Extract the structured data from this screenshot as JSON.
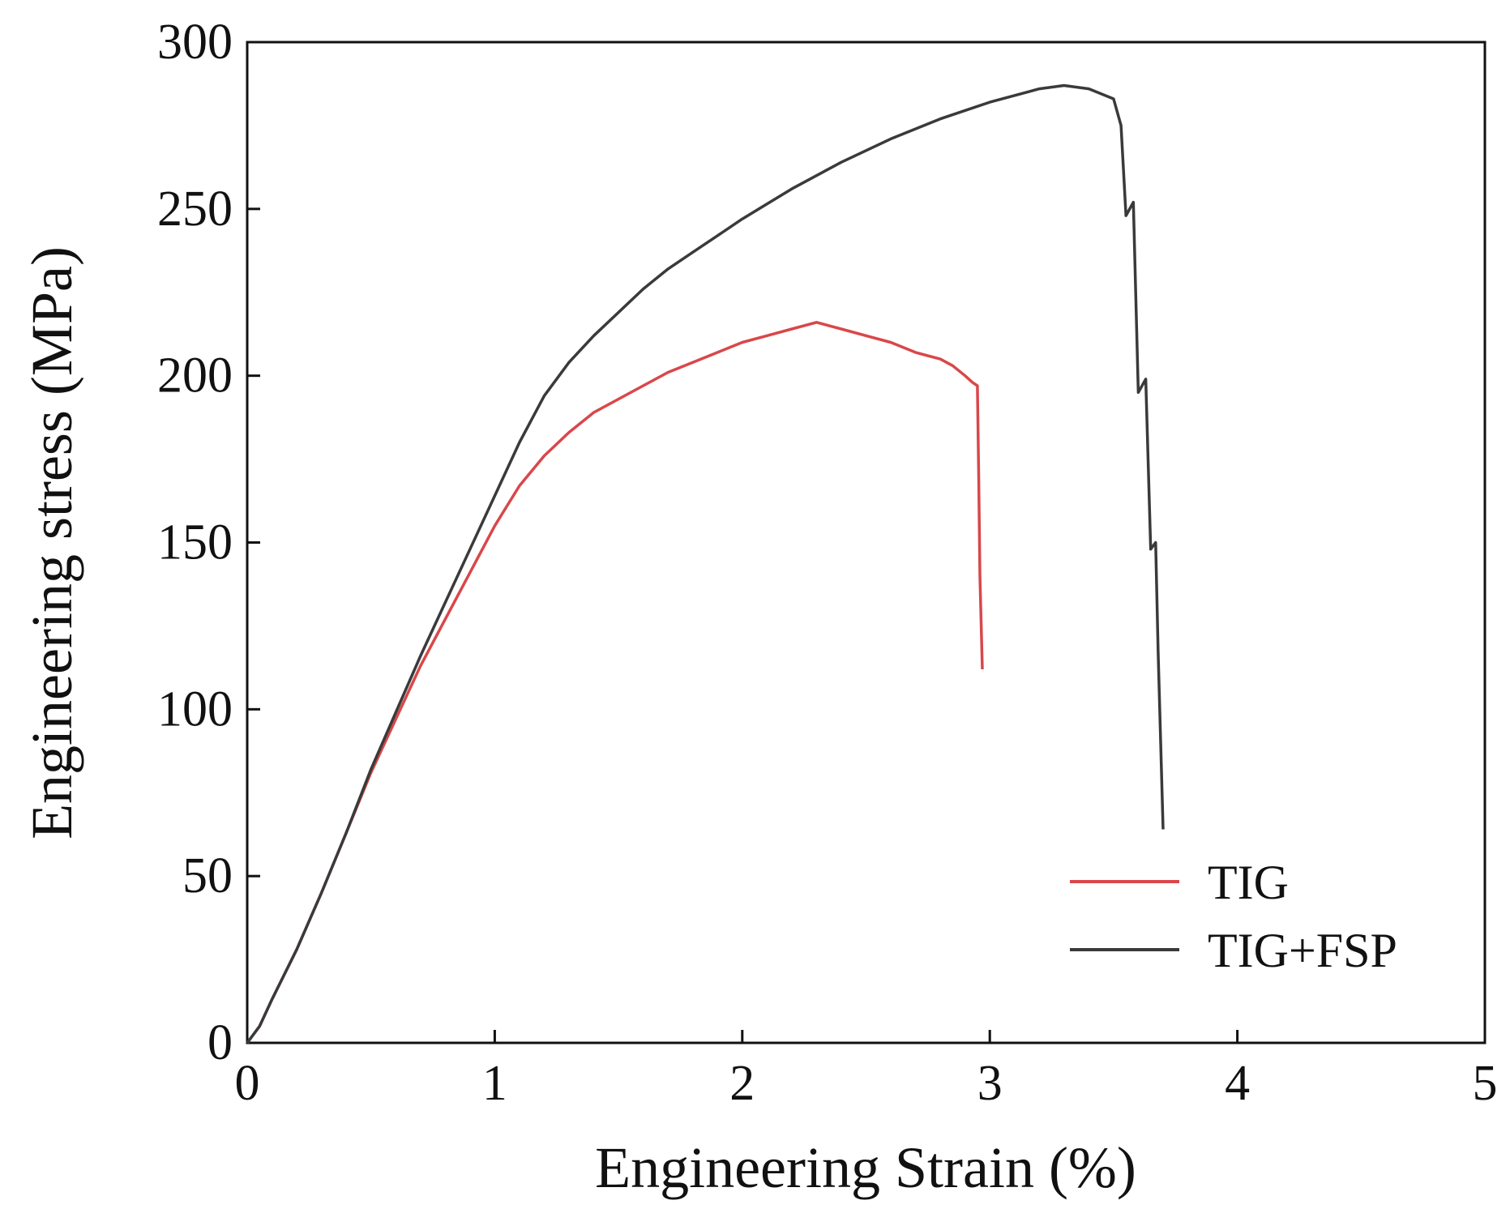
{
  "chart_data": {
    "type": "line",
    "title": "",
    "xlabel": "Engineering Strain (%)",
    "ylabel": "Engineering stress (MPa)",
    "xlim": [
      0,
      5
    ],
    "ylim": [
      0,
      300
    ],
    "xticks": [
      0,
      1,
      2,
      3,
      4,
      5
    ],
    "yticks": [
      0,
      50,
      100,
      150,
      200,
      250,
      300
    ],
    "xtick_labels": [
      "0",
      "1",
      "2",
      "3",
      "4",
      "5"
    ],
    "ytick_labels": [
      "0",
      "50",
      "100",
      "150",
      "200",
      "250",
      "300"
    ],
    "grid": false,
    "legend_position": "bottom-right",
    "series": [
      {
        "name": "TIG",
        "color": "#d9474a",
        "points": [
          [
            0,
            0
          ],
          [
            0.05,
            5
          ],
          [
            0.1,
            13
          ],
          [
            0.2,
            28
          ],
          [
            0.3,
            45
          ],
          [
            0.4,
            63
          ],
          [
            0.5,
            81
          ],
          [
            0.6,
            97
          ],
          [
            0.7,
            113
          ],
          [
            0.8,
            127
          ],
          [
            0.9,
            141
          ],
          [
            1.0,
            155
          ],
          [
            1.1,
            167
          ],
          [
            1.2,
            176
          ],
          [
            1.3,
            183
          ],
          [
            1.4,
            189
          ],
          [
            1.5,
            193
          ],
          [
            1.6,
            197
          ],
          [
            1.7,
            201
          ],
          [
            1.8,
            204
          ],
          [
            1.9,
            207
          ],
          [
            2.0,
            210
          ],
          [
            2.1,
            212
          ],
          [
            2.2,
            214
          ],
          [
            2.3,
            216
          ],
          [
            2.35,
            215
          ],
          [
            2.4,
            214
          ],
          [
            2.5,
            212
          ],
          [
            2.6,
            210
          ],
          [
            2.7,
            207
          ],
          [
            2.8,
            205
          ],
          [
            2.85,
            203
          ],
          [
            2.9,
            200
          ],
          [
            2.93,
            198
          ],
          [
            2.95,
            197
          ],
          [
            2.955,
            170
          ],
          [
            2.96,
            140
          ],
          [
            2.97,
            112
          ]
        ]
      },
      {
        "name": "TIG+FSP",
        "color": "#3a3a3a",
        "points": [
          [
            0,
            0
          ],
          [
            0.05,
            5
          ],
          [
            0.1,
            13
          ],
          [
            0.2,
            28
          ],
          [
            0.3,
            45
          ],
          [
            0.4,
            63
          ],
          [
            0.5,
            82
          ],
          [
            0.6,
            99
          ],
          [
            0.7,
            116
          ],
          [
            0.8,
            132
          ],
          [
            0.9,
            148
          ],
          [
            1.0,
            164
          ],
          [
            1.1,
            180
          ],
          [
            1.2,
            194
          ],
          [
            1.3,
            204
          ],
          [
            1.4,
            212
          ],
          [
            1.5,
            219
          ],
          [
            1.6,
            226
          ],
          [
            1.7,
            232
          ],
          [
            1.8,
            237
          ],
          [
            1.9,
            242
          ],
          [
            2.0,
            247
          ],
          [
            2.2,
            256
          ],
          [
            2.4,
            264
          ],
          [
            2.6,
            271
          ],
          [
            2.8,
            277
          ],
          [
            3.0,
            282
          ],
          [
            3.2,
            286
          ],
          [
            3.3,
            287
          ],
          [
            3.4,
            286
          ],
          [
            3.5,
            283
          ],
          [
            3.53,
            275
          ],
          [
            3.55,
            248
          ],
          [
            3.58,
            252
          ],
          [
            3.6,
            195
          ],
          [
            3.63,
            199
          ],
          [
            3.65,
            148
          ],
          [
            3.67,
            150
          ],
          [
            3.68,
            117
          ],
          [
            3.7,
            64
          ]
        ]
      }
    ]
  }
}
